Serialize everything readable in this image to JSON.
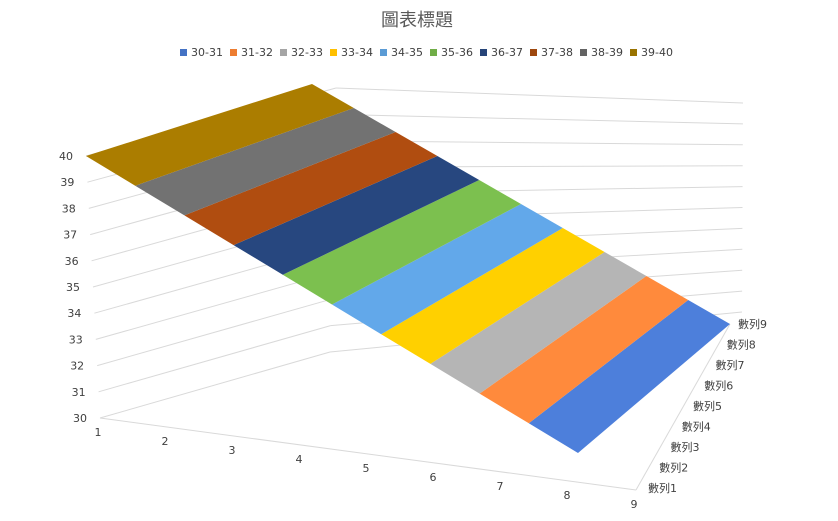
{
  "chart_data": {
    "type": "surface",
    "title": "圖表標題",
    "legend": {
      "placement": "top",
      "entries": [
        {
          "label": "30-31",
          "color": "#4472C4"
        },
        {
          "label": "31-32",
          "color": "#ED7D31"
        },
        {
          "label": "32-33",
          "color": "#A5A5A5"
        },
        {
          "label": "33-34",
          "color": "#FFC000"
        },
        {
          "label": "34-35",
          "color": "#5B9BD5"
        },
        {
          "label": "35-36",
          "color": "#70AD47"
        },
        {
          "label": "36-37",
          "color": "#264478"
        },
        {
          "label": "37-38",
          "color": "#9E480E"
        },
        {
          "label": "38-39",
          "color": "#636363"
        },
        {
          "label": "39-40",
          "color": "#997300"
        }
      ]
    },
    "band_colors": [
      "#4D7FDB",
      "#FF8A3C",
      "#B5B5B5",
      "#FFD000",
      "#62A8EA",
      "#7CC04F",
      "#27477F",
      "#B04D10",
      "#727272",
      "#AB7D00"
    ],
    "x_categories": [
      "1",
      "2",
      "3",
      "4",
      "5",
      "6",
      "7",
      "8",
      "9"
    ],
    "series_names": [
      "數列1",
      "數列2",
      "數列3",
      "數列4",
      "數列5",
      "數列6",
      "數列7",
      "數列8",
      "數列9"
    ],
    "z_ticks": [
      "30",
      "31",
      "32",
      "33",
      "34",
      "35",
      "36",
      "37",
      "38",
      "39",
      "40"
    ],
    "z_range": [
      30,
      40
    ],
    "grid": true
  }
}
